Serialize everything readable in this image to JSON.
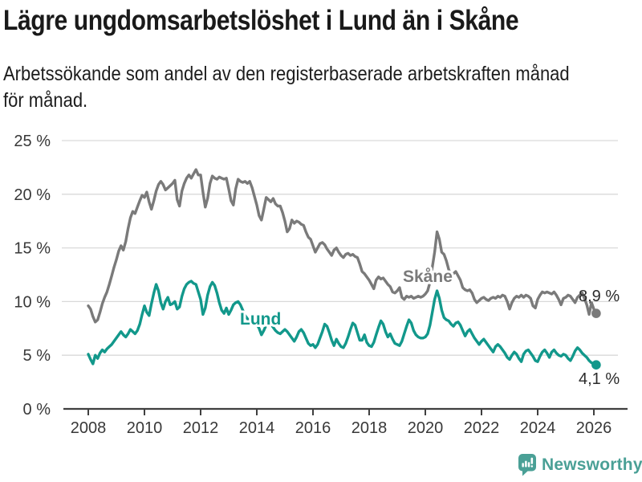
{
  "header": {
    "title": "Lägre ungdomsarbetslöshet i Lund än i Skåne",
    "subtitle_line1": "Arbetssökande som andel av den registerbaserade arbetskraften månad",
    "subtitle_line2": "för månad."
  },
  "branding": {
    "logo_text": "Newsworthy",
    "logo_icon": "bar-chart-speech-bubble-icon",
    "logo_color": "#4aa096"
  },
  "chart_data": {
    "type": "line",
    "title": "Lägre ungdomsarbetslöshet i Lund än i Skåne",
    "xlabel": "",
    "ylabel": "",
    "x_unit": "year (monthly data)",
    "y_unit": "%",
    "x_start": 2008.0,
    "x_step": 0.08333,
    "xlim": [
      2007.1,
      2027.2
    ],
    "ylim": [
      0,
      25
    ],
    "grid": "horizontal",
    "legend_position": "inline-labels",
    "y_ticks": [
      {
        "value": 0,
        "label": "0 %"
      },
      {
        "value": 5,
        "label": "5 %"
      },
      {
        "value": 10,
        "label": "10 %"
      },
      {
        "value": 15,
        "label": "15 %"
      },
      {
        "value": 20,
        "label": "20 %"
      },
      {
        "value": 25,
        "label": "25 %"
      }
    ],
    "x_ticks": [
      {
        "value": 2008,
        "label": "2008"
      },
      {
        "value": 2010,
        "label": "2010"
      },
      {
        "value": 2012,
        "label": "2012"
      },
      {
        "value": 2014,
        "label": "2014"
      },
      {
        "value": 2016,
        "label": "2016"
      },
      {
        "value": 2018,
        "label": "2018"
      },
      {
        "value": 2020,
        "label": "2020"
      },
      {
        "value": 2022,
        "label": "2022"
      },
      {
        "value": 2024,
        "label": "2024"
      },
      {
        "value": 2026,
        "label": "2026"
      }
    ],
    "colors": {
      "grid": "#d9d9d9",
      "axis": "#3f3f3f",
      "tick_text": "#383838",
      "value_text": "#2b2b2b"
    },
    "series": [
      {
        "id": "skane",
        "name": "Skåne",
        "color": "#7a7a7a",
        "end_label": "8,9 %",
        "last_point": {
          "period": "2026-02",
          "value": 8.9
        },
        "values": [
          9.6,
          9.3,
          8.6,
          8.1,
          8.3,
          9.0,
          9.8,
          10.4,
          10.9,
          11.6,
          12.4,
          13.2,
          13.9,
          14.7,
          15.2,
          14.8,
          15.6,
          16.8,
          17.8,
          18.4,
          18.2,
          18.8,
          19.4,
          19.9,
          19.7,
          20.2,
          19.3,
          18.6,
          19.4,
          20.3,
          20.9,
          21.2,
          20.9,
          20.4,
          20.6,
          20.8,
          21.0,
          21.3,
          19.5,
          18.9,
          20.3,
          21.0,
          21.5,
          21.8,
          21.5,
          21.9,
          22.3,
          21.8,
          21.8,
          20.2,
          18.8,
          19.6,
          21.0,
          21.7,
          21.5,
          21.4,
          21.6,
          21.5,
          21.4,
          21.5,
          20.5,
          19.4,
          19.0,
          20.5,
          21.4,
          21.2,
          21.1,
          21.2,
          21.0,
          21.2,
          20.6,
          19.8,
          19.0,
          18.0,
          17.6,
          18.6,
          19.7,
          19.5,
          19.3,
          19.6,
          19.1,
          18.9,
          18.9,
          18.3,
          17.5,
          16.5,
          16.8,
          17.6,
          17.3,
          17.5,
          17.4,
          17.2,
          17.1,
          16.5,
          16.0,
          15.8,
          15.2,
          14.6,
          15.0,
          15.4,
          15.5,
          15.3,
          14.9,
          14.6,
          14.3,
          14.8,
          15.0,
          14.6,
          14.3,
          14.1,
          14.4,
          14.5,
          14.3,
          14.4,
          14.2,
          14.1,
          13.5,
          12.8,
          12.6,
          12.3,
          12.0,
          11.6,
          11.2,
          12.0,
          12.3,
          12.1,
          12.2,
          11.9,
          11.6,
          11.4,
          10.9,
          10.8,
          11.0,
          11.3,
          10.4,
          10.2,
          10.5,
          10.4,
          10.5,
          10.3,
          10.4,
          10.5,
          10.4,
          10.5,
          10.7,
          11.0,
          11.8,
          13.2,
          14.6,
          16.5,
          15.8,
          14.6,
          14.4,
          13.8,
          13.0,
          12.4,
          12.6,
          12.8,
          12.4,
          12.0,
          11.3,
          11.1,
          11.0,
          11.1,
          10.8,
          10.2,
          9.9,
          10.1,
          10.3,
          10.4,
          10.2,
          10.1,
          10.3,
          10.4,
          10.3,
          10.5,
          10.4,
          10.6,
          10.5,
          10.0,
          9.3,
          9.9,
          10.3,
          10.5,
          10.4,
          10.6,
          10.4,
          10.6,
          10.5,
          10.3,
          9.6,
          9.4,
          10.2,
          10.6,
          10.9,
          10.8,
          10.9,
          10.8,
          10.7,
          10.9,
          10.6,
          10.2,
          9.7,
          10.3,
          10.4,
          10.6,
          10.5,
          10.2,
          9.9,
          10.4,
          10.6,
          10.8,
          10.3,
          9.7,
          8.8,
          9.9,
          9.3,
          8.9
        ]
      },
      {
        "id": "lund",
        "name": "Lund",
        "color": "#12988b",
        "end_label": "4,1 %",
        "last_point": {
          "period": "2026-02",
          "value": 4.1
        },
        "values": [
          5.1,
          4.6,
          4.2,
          5.0,
          4.7,
          5.2,
          5.5,
          5.3,
          5.6,
          5.8,
          6.0,
          6.3,
          6.6,
          6.9,
          7.2,
          6.9,
          6.7,
          7.0,
          7.4,
          7.2,
          7.0,
          7.3,
          7.9,
          8.8,
          9.6,
          9.0,
          8.7,
          9.8,
          10.8,
          11.6,
          11.0,
          9.9,
          9.3,
          10.0,
          10.4,
          9.7,
          9.8,
          10.0,
          9.3,
          9.5,
          10.5,
          11.2,
          11.6,
          11.8,
          11.9,
          11.7,
          11.6,
          10.9,
          10.2,
          8.8,
          9.4,
          10.6,
          11.4,
          11.8,
          11.5,
          10.8,
          9.9,
          9.2,
          8.9,
          9.4,
          8.8,
          9.2,
          9.7,
          9.9,
          10.0,
          9.7,
          9.2,
          8.7,
          8.4,
          8.2,
          8.0,
          7.8,
          7.9,
          7.5,
          6.9,
          7.3,
          7.8,
          8.1,
          7.9,
          7.6,
          7.3,
          7.1,
          7.0,
          7.2,
          7.4,
          7.2,
          6.9,
          6.6,
          6.3,
          6.7,
          7.2,
          7.4,
          7.1,
          6.6,
          6.1,
          5.9,
          6.0,
          5.7,
          6.0,
          6.6,
          7.2,
          7.9,
          7.7,
          7.1,
          6.4,
          5.9,
          6.5,
          6.1,
          5.8,
          5.7,
          6.1,
          6.7,
          7.4,
          8.0,
          7.8,
          7.1,
          6.4,
          6.4,
          6.9,
          6.2,
          5.9,
          5.8,
          6.2,
          6.9,
          7.6,
          8.2,
          7.9,
          7.2,
          6.7,
          7.0,
          6.5,
          6.1,
          6.0,
          5.9,
          6.3,
          7.0,
          7.7,
          8.3,
          8.0,
          7.3,
          6.9,
          6.7,
          6.6,
          6.6,
          6.7,
          7.0,
          7.8,
          9.0,
          10.2,
          11.0,
          10.3,
          9.2,
          8.5,
          8.3,
          8.2,
          7.9,
          7.7,
          8.0,
          8.1,
          7.8,
          7.3,
          6.8,
          7.2,
          7.4,
          7.0,
          6.6,
          6.3,
          6.0,
          6.3,
          6.5,
          6.2,
          5.9,
          5.6,
          5.3,
          5.8,
          6.0,
          5.8,
          5.5,
          5.2,
          4.8,
          4.6,
          5.0,
          5.3,
          5.1,
          4.7,
          4.4,
          5.1,
          5.4,
          5.5,
          5.2,
          4.9,
          4.5,
          4.4,
          4.9,
          5.3,
          5.5,
          5.2,
          4.8,
          5.3,
          5.5,
          5.2,
          5.0,
          4.9,
          5.1,
          5.0,
          4.7,
          4.5,
          4.9,
          5.4,
          5.7,
          5.5,
          5.2,
          5.0,
          4.8,
          4.5,
          4.3,
          4.2,
          4.1
        ]
      }
    ]
  }
}
